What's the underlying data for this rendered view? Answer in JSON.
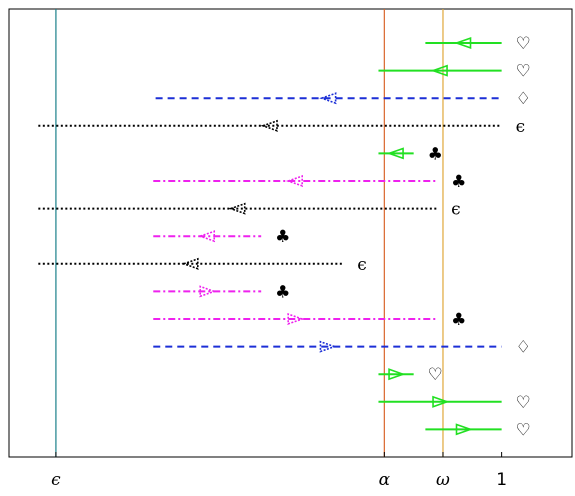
{
  "x_ticks": [
    {
      "label": "ϵ",
      "value": -3.8
    },
    {
      "label": "α",
      "value": -1
    },
    {
      "label": "ω",
      "value": -0.5
    },
    {
      "label": "1",
      "value": 0
    }
  ],
  "x_range": [
    -4.2,
    0.6
  ],
  "vertical_lines": [
    {
      "name": "epsilon-line",
      "value": -3.8,
      "color": "#1a7f8a"
    },
    {
      "name": "alpha-line",
      "value": -1,
      "color": "#d9662b"
    },
    {
      "name": "omega-line",
      "value": -0.5,
      "color": "#e0a83a"
    }
  ],
  "styles": {
    "heart": {
      "color": "#22e022",
      "dash": "",
      "width": 2
    },
    "diamond": {
      "color": "#1c2fd6",
      "dash": "7 5",
      "width": 2
    },
    "epsilon": {
      "color": "#000000",
      "dash": "2 2.5",
      "width": 2
    },
    "club": {
      "color": "#ee22ee",
      "dash": "7 3 2 3",
      "width": 2
    }
  },
  "rows": [
    {
      "y": 1,
      "x1": -0.65,
      "x2": 0,
      "dir": "left",
      "style": "heart",
      "label": "♡"
    },
    {
      "y": 2,
      "x1": -1.05,
      "x2": 0,
      "dir": "left",
      "style": "heart",
      "label": "♡"
    },
    {
      "y": 3,
      "x1": -2.95,
      "x2": 0,
      "dir": "left",
      "style": "diamond",
      "label": "♢"
    },
    {
      "y": 4,
      "x1": -3.95,
      "x2": 0,
      "dir": "left",
      "style": "epsilon",
      "label": "ϵ"
    },
    {
      "y": 5,
      "x1": -1.05,
      "x2": -0.75,
      "dir": "left",
      "style": "heart",
      "label": "♣"
    },
    {
      "y": 6,
      "x1": -2.97,
      "x2": -0.55,
      "dir": "left",
      "style": "club",
      "label": "♣"
    },
    {
      "y": 7,
      "x1": -3.95,
      "x2": -0.55,
      "dir": "left",
      "style": "epsilon",
      "label": "ϵ"
    },
    {
      "y": 8,
      "x1": -2.97,
      "x2": -2.05,
      "dir": "left",
      "style": "club",
      "label": "♣"
    },
    {
      "y": 9,
      "x1": -3.95,
      "x2": -1.35,
      "dir": "left",
      "style": "epsilon",
      "label": "ϵ"
    },
    {
      "y": 10,
      "x1": -2.97,
      "x2": -2.05,
      "dir": "right",
      "style": "club",
      "label": "♣"
    },
    {
      "y": 11,
      "x1": -2.97,
      "x2": -0.55,
      "dir": "right",
      "style": "club",
      "label": "♣"
    },
    {
      "y": 12,
      "x1": -2.97,
      "x2": 0,
      "dir": "right",
      "style": "diamond",
      "label": "♢"
    },
    {
      "y": 13,
      "x1": -1.05,
      "x2": -0.75,
      "dir": "right",
      "style": "heart",
      "label": "♡"
    },
    {
      "y": 14,
      "x1": -1.05,
      "x2": 0,
      "dir": "right",
      "style": "heart",
      "label": "♡"
    },
    {
      "y": 15,
      "x1": -0.65,
      "x2": 0,
      "dir": "right",
      "style": "heart",
      "label": "♡"
    }
  ]
}
